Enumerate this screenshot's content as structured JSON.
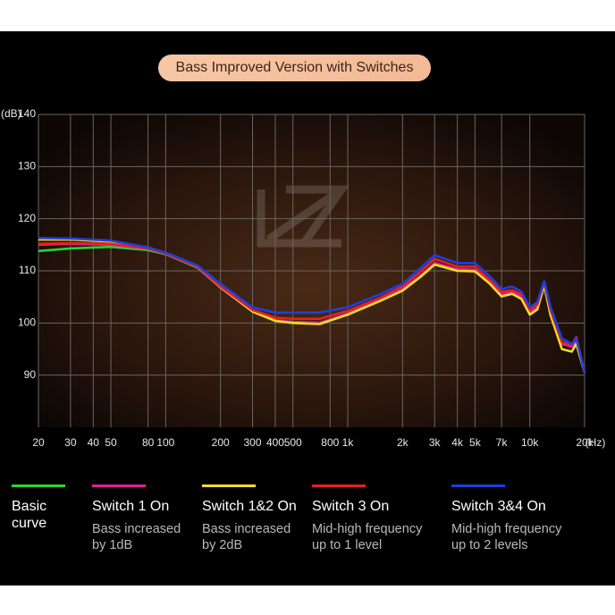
{
  "chart_data": {
    "type": "line",
    "title": "Bass Improved Version with Switches",
    "y_label": "(dB)",
    "x_label": "(Hz)",
    "x_log": true,
    "grid": true,
    "grid_color": "#6b6560",
    "xlim": [
      20,
      20000
    ],
    "ylim": [
      80,
      140
    ],
    "yticks": [
      140,
      130,
      120,
      110,
      100,
      90
    ],
    "xticks": [
      20,
      30,
      40,
      50,
      80,
      100,
      200,
      300,
      400,
      500,
      800,
      {
        "value": 1000,
        "label": "1k"
      },
      {
        "value": 2000,
        "label": "2k"
      },
      {
        "value": 3000,
        "label": "3k"
      },
      {
        "value": 4000,
        "label": "4k"
      },
      {
        "value": 5000,
        "label": "5k"
      },
      {
        "value": 7000,
        "label": "7k"
      },
      {
        "value": 10000,
        "label": "10k"
      },
      {
        "value": 20000,
        "label": "20k"
      }
    ],
    "x": [
      20,
      30,
      50,
      80,
      100,
      150,
      200,
      300,
      400,
      500,
      700,
      1000,
      1500,
      2000,
      2500,
      3000,
      4000,
      5000,
      6000,
      7000,
      8000,
      9000,
      10000,
      11000,
      12000,
      13000,
      15000,
      17000,
      18000,
      20000
    ],
    "series": [
      {
        "name": "Basic curve",
        "description": "",
        "color": "#27d33a",
        "values": [
          113.8,
          114.3,
          114.6,
          114,
          113.2,
          110.6,
          106.8,
          102.2,
          100.5,
          100.2,
          100,
          101.8,
          104.5,
          106.5,
          109,
          111.5,
          110.3,
          110.2,
          108,
          105.5,
          106,
          105,
          102,
          103,
          107.5,
          102,
          96,
          95.5,
          96.5,
          90.5
        ]
      },
      {
        "name": "Switch 1 On",
        "description": "Bass increased by 1dB",
        "color": "#e0209a",
        "values": [
          115,
          115.2,
          115,
          114.2,
          113.3,
          110.7,
          106.8,
          102.2,
          100.5,
          100.2,
          100,
          101.8,
          104.5,
          106.5,
          109,
          111.5,
          110.3,
          110.2,
          108,
          105.5,
          106,
          105,
          102,
          103,
          107.5,
          102,
          96,
          95.5,
          96.5,
          90.5
        ]
      },
      {
        "name": "Switch 1&2 On",
        "description": "Bass increased by 2dB",
        "color": "#f2dd25",
        "values": [
          116,
          116,
          115.6,
          114.5,
          113.4,
          110.8,
          106.9,
          102.2,
          100.4,
          100,
          99.8,
          101.6,
          104.2,
          106.2,
          108.8,
          111.2,
          110,
          109.9,
          107.6,
          105.1,
          105.6,
          104.6,
          101.6,
          102.6,
          107.2,
          101.5,
          95,
          94.5,
          96,
          90.5
        ]
      },
      {
        "name": "Switch 3 On",
        "description": "Mid-high frequency up to 1 level",
        "color": "#e82020",
        "values": [
          115.2,
          115.3,
          115.2,
          114.3,
          113.3,
          110.8,
          107,
          102.5,
          101,
          100.8,
          100.8,
          102.3,
          104.8,
          107,
          109.8,
          112.3,
          110.8,
          110.8,
          108.3,
          106,
          106.3,
          105.5,
          102.5,
          103.5,
          107.8,
          102.5,
          96.3,
          95.8,
          97.3,
          90.5
        ]
      },
      {
        "name": "Switch 3&4 On",
        "description": "Mid-high frequency up to 2 levels",
        "color": "#1f3fe0",
        "values": [
          116.3,
          116.2,
          115.8,
          114.5,
          113.5,
          111,
          107.5,
          103,
          102,
          102,
          102,
          103,
          105.5,
          107.5,
          110.5,
          113,
          111.5,
          111.5,
          109,
          106.5,
          107,
          106,
          103,
          104,
          108,
          103,
          97,
          96,
          97,
          90.5
        ]
      }
    ]
  }
}
